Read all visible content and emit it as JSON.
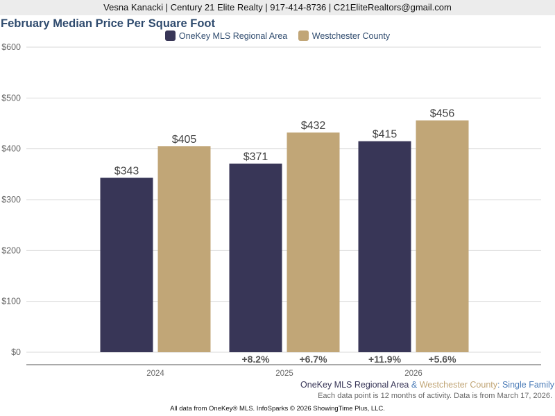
{
  "header": {
    "contact_line": "Vesna Kanacki | Century 21 Elite Realty | 917-414-8736 | C21EliteRealtors@gmail.com"
  },
  "colors": {
    "series_1": "#383657",
    "series_2": "#c1a677",
    "title": "#2f4b6e",
    "subtitle_suffix": "#4a7bb7"
  },
  "chart_data": {
    "type": "bar",
    "title": "February Median Price Per Square Foot",
    "xlabel": "",
    "ylabel": "",
    "ylim": [
      0,
      600
    ],
    "yticks": [
      0,
      100,
      200,
      300,
      400,
      500,
      600
    ],
    "ytick_labels": [
      "$0",
      "$100",
      "$200",
      "$300",
      "$400",
      "$500",
      "$600"
    ],
    "grid": true,
    "legend_position": "top-center",
    "categories": [
      "2024",
      "2025",
      "2026"
    ],
    "series": [
      {
        "name": "OneKey MLS Regional Area",
        "color": "#383657",
        "values": [
          343,
          371,
          415
        ],
        "value_labels": [
          "$343",
          "$371",
          "$415"
        ],
        "change_labels": [
          "",
          "+8.2%",
          "+11.9%"
        ]
      },
      {
        "name": "Westchester County",
        "color": "#c1a677",
        "values": [
          405,
          432,
          456
        ],
        "value_labels": [
          "$405",
          "$432",
          "$456"
        ],
        "change_labels": [
          "",
          "+6.7%",
          "+5.6%"
        ]
      }
    ]
  },
  "subtitle": {
    "part1": "OneKey MLS Regional Area",
    "connector": " & ",
    "part2": "Westchester County",
    "colon": ": ",
    "part3": "Single Family"
  },
  "note": "Each data point is 12 months of activity. Data is from March 17, 2026.",
  "footer": "All data from OneKey® MLS. InfoSparks © 2026 ShowingTime Plus, LLC."
}
